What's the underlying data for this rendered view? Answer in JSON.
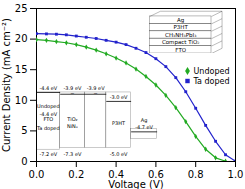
{
  "chart_data": {
    "type": "line",
    "xlabel": "Voltage (V)",
    "ylabel": "Current Density (mA cm⁻²)",
    "xlim": [
      0.0,
      1.0
    ],
    "ylim": [
      0,
      25
    ],
    "xticks": [
      {
        "value": 0.0,
        "label": "0.0"
      },
      0.2,
      0.4,
      0.6,
      0.8,
      {
        "value": 1.0,
        "label": "1.0"
      }
    ],
    "yticks": [
      0,
      5,
      10,
      15,
      20,
      25
    ],
    "grid": false,
    "legend": "right",
    "series": [
      {
        "name": "Undoped",
        "color": "#22aa22",
        "marker": "diamond",
        "x": [
          0.0,
          0.05,
          0.1,
          0.15,
          0.2,
          0.25,
          0.3,
          0.35,
          0.4,
          0.45,
          0.5,
          0.55,
          0.6,
          0.65,
          0.7,
          0.75,
          0.8,
          0.85,
          0.9,
          0.95
        ],
        "values": [
          19.9,
          19.8,
          19.6,
          19.4,
          19.1,
          18.7,
          18.2,
          17.6,
          16.9,
          16.1,
          15.1,
          13.9,
          12.5,
          10.8,
          8.8,
          6.5,
          4.1,
          2.0,
          0.6,
          0.05
        ]
      },
      {
        "name": "Ta doped",
        "color": "#2222cc",
        "marker": "square",
        "x": [
          0.0,
          0.05,
          0.1,
          0.15,
          0.2,
          0.25,
          0.3,
          0.35,
          0.4,
          0.45,
          0.5,
          0.55,
          0.6,
          0.65,
          0.7,
          0.75,
          0.8,
          0.85,
          0.9,
          0.95,
          1.0
        ],
        "values": [
          20.9,
          20.85,
          20.8,
          20.7,
          20.5,
          20.3,
          20.1,
          19.8,
          19.5,
          19.1,
          18.5,
          17.8,
          16.8,
          15.5,
          13.7,
          11.4,
          8.7,
          5.9,
          3.3,
          1.1,
          0.05
        ]
      }
    ],
    "annotations": [
      "-4.4 eV",
      "Undoped",
      "-4.4 eV",
      "FTO",
      "Ta doped",
      "-7.2 eV",
      "-3.9 eV",
      "TiO₂",
      "NiNₓ",
      "-7.3 eV",
      "-3.9 eV",
      "-3.0 eV",
      "P3HT",
      "-5.0 eV",
      "-4.7 eV",
      "Ag",
      "−",
      "−",
      "FTO",
      "Compact TiO₂",
      "CH₃NH₃PbI₃",
      "P3HT",
      "Ag"
    ]
  }
}
